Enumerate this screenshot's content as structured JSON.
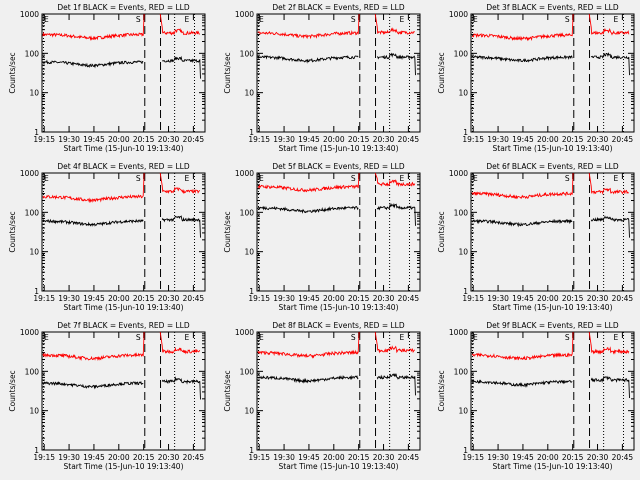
{
  "page": {
    "background": "#f0f0f0"
  },
  "colors": {
    "events": "#000000",
    "lld": "#ff0000",
    "axis": "#000000"
  },
  "shared": {
    "xlabel": "Start Time (15-Jun-10 19:13:40)",
    "ylabel": "Counts/sec",
    "x_ticks": [
      "19:15",
      "19:30",
      "19:45",
      "20:00",
      "20:15",
      "20:30",
      "20:45"
    ],
    "y_ticks": [
      "1",
      "10",
      "100",
      "1000"
    ],
    "markers": {
      "S": "S",
      "E_left": "E",
      "E_right": "E"
    }
  },
  "chart_data": [
    {
      "type": "line",
      "title": "Det 1f BLACK = Events, RED = LLD",
      "scale": "log",
      "ylim": [
        1,
        1000
      ],
      "xlim": [
        "19:13:40",
        "20:52:00"
      ],
      "xlabel": "Start Time (15-Jun-10 19:13:40)",
      "ylabel": "Counts/sec",
      "series": [
        {
          "values_approx": {
            "before": 300,
            "after": 330
          }
        },
        {
          "values_approx": {
            "before": 60,
            "after": 65
          }
        }
      ]
    },
    {
      "type": "line",
      "title": "Det 2f BLACK = Events, RED = LLD",
      "scale": "log",
      "ylim": [
        1,
        1000
      ],
      "xlim": [
        "19:13:40",
        "20:52:00"
      ],
      "xlabel": "Start Time (15-Jun-10 19:13:40)",
      "ylabel": "Counts/sec",
      "series": [
        {
          "values_approx": {
            "before": 330,
            "after": 340
          }
        },
        {
          "values_approx": {
            "before": 80,
            "after": 80
          }
        }
      ]
    },
    {
      "type": "line",
      "title": "Det 3f BLACK = Events, RED = LLD",
      "scale": "log",
      "ylim": [
        1,
        1000
      ],
      "xlim": [
        "19:13:40",
        "20:52:00"
      ],
      "xlabel": "Start Time (15-Jun-10 19:13:40)",
      "ylabel": "Counts/sec",
      "series": [
        {
          "values_approx": {
            "before": 290,
            "after": 330
          }
        },
        {
          "values_approx": {
            "before": 80,
            "after": 80
          }
        }
      ]
    },
    {
      "type": "line",
      "title": "Det 4f BLACK = Events, RED = LLD",
      "scale": "log",
      "ylim": [
        1,
        1000
      ],
      "xlim": [
        "19:13:40",
        "20:52:00"
      ],
      "xlabel": "Start Time (15-Jun-10 19:13:40)",
      "ylabel": "Counts/sec",
      "series": [
        {
          "values_approx": {
            "before": 250,
            "after": 340
          }
        },
        {
          "values_approx": {
            "before": 60,
            "after": 65
          }
        }
      ]
    },
    {
      "type": "line",
      "title": "Det 5f BLACK = Events, RED = LLD",
      "scale": "log",
      "ylim": [
        1,
        1000
      ],
      "xlim": [
        "19:13:40",
        "20:52:00"
      ],
      "xlabel": "Start Time (15-Jun-10 19:13:40)",
      "ylabel": "Counts/sec",
      "series": [
        {
          "values_approx": {
            "before": 450,
            "after": 520
          }
        },
        {
          "values_approx": {
            "before": 130,
            "after": 130
          }
        }
      ]
    },
    {
      "type": "line",
      "title": "Det 6f BLACK = Events, RED = LLD",
      "scale": "log",
      "ylim": [
        1,
        1000
      ],
      "xlim": [
        "19:13:40",
        "20:52:00"
      ],
      "xlabel": "Start Time (15-Jun-10 19:13:40)",
      "ylabel": "Counts/sec",
      "series": [
        {
          "values_approx": {
            "before": 300,
            "after": 330
          }
        },
        {
          "values_approx": {
            "before": 60,
            "after": 65
          }
        }
      ]
    },
    {
      "type": "line",
      "title": "Det 7f BLACK = Events, RED = LLD",
      "scale": "log",
      "ylim": [
        1,
        1000
      ],
      "xlim": [
        "19:13:40",
        "20:52:00"
      ],
      "xlabel": "Start Time (15-Jun-10 19:13:40)",
      "ylabel": "Counts/sec",
      "series": [
        {
          "values_approx": {
            "before": 260,
            "after": 320
          }
        },
        {
          "values_approx": {
            "before": 50,
            "after": 55
          }
        }
      ]
    },
    {
      "type": "line",
      "title": "Det 8f BLACK = Events, RED = LLD",
      "scale": "log",
      "ylim": [
        1,
        1000
      ],
      "xlim": [
        "19:13:40",
        "20:52:00"
      ],
      "xlabel": "Start Time (15-Jun-10 19:13:40)",
      "ylabel": "Counts/sec",
      "series": [
        {
          "values_approx": {
            "before": 300,
            "after": 340
          }
        },
        {
          "values_approx": {
            "before": 70,
            "after": 70
          }
        }
      ]
    },
    {
      "type": "line",
      "title": "Det 9f BLACK = Events, RED = LLD",
      "scale": "log",
      "ylim": [
        1,
        1000
      ],
      "xlim": [
        "19:13:40",
        "20:52:00"
      ],
      "xlabel": "Start Time (15-Jun-10 19:13:40)",
      "ylabel": "Counts/sec",
      "series": [
        {
          "values_approx": {
            "before": 260,
            "after": 320
          }
        },
        {
          "values_approx": {
            "before": 55,
            "after": 60
          }
        }
      ]
    }
  ]
}
